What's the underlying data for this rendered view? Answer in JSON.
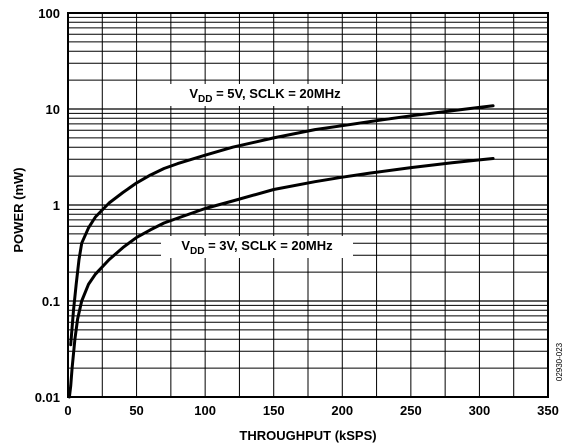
{
  "chart_data": {
    "type": "line",
    "xlabel": "THROUGHPUT (kSPS)",
    "ylabel": "POWER (mW)",
    "xlim": [
      0,
      350
    ],
    "ylim": [
      0.01,
      100
    ],
    "yscale": "log",
    "grid": true,
    "x_ticks": [
      "0",
      "50",
      "100",
      "150",
      "200",
      "250",
      "300",
      "350"
    ],
    "y_ticks": [
      "0.01",
      "0.1",
      "1",
      "10",
      "100"
    ],
    "figure_code": "02930-023",
    "annotations": [
      {
        "main": "V",
        "sub": "DD",
        "rest": " = 5V, SCLK = 20MHz"
      },
      {
        "main": "V",
        "sub": "DD",
        "rest": " = 3V, SCLK = 20MHz"
      }
    ],
    "series": [
      {
        "x": [
          2,
          4,
          6,
          8,
          10,
          15,
          20,
          30,
          40,
          50,
          60,
          70,
          80,
          100,
          120,
          150,
          180,
          200,
          220,
          250,
          280,
          300,
          310
        ],
        "y": [
          0.035,
          0.08,
          0.15,
          0.27,
          0.4,
          0.58,
          0.75,
          1.05,
          1.35,
          1.7,
          2.05,
          2.4,
          2.7,
          3.3,
          4.0,
          5.0,
          6.1,
          6.7,
          7.4,
          8.5,
          9.6,
          10.4,
          10.8
        ]
      },
      {
        "x": [
          1,
          2,
          3,
          5,
          7,
          10,
          15,
          20,
          30,
          40,
          50,
          60,
          70,
          80,
          100,
          120,
          150,
          180,
          200,
          220,
          250,
          280,
          300,
          310
        ],
        "y": [
          0.01,
          0.013,
          0.02,
          0.04,
          0.065,
          0.1,
          0.15,
          0.19,
          0.27,
          0.36,
          0.46,
          0.55,
          0.65,
          0.73,
          0.92,
          1.1,
          1.45,
          1.75,
          1.95,
          2.15,
          2.45,
          2.75,
          2.95,
          3.05
        ]
      }
    ]
  }
}
